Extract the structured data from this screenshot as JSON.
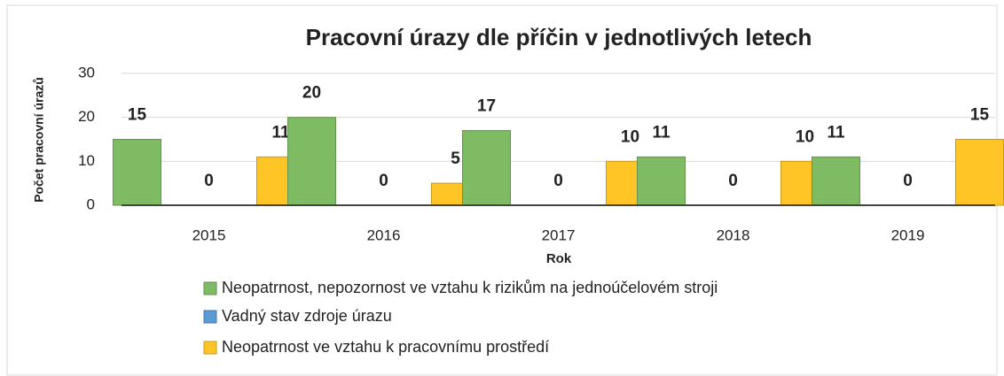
{
  "chart_data": {
    "type": "bar",
    "title": "Pracovní úrazy dle příčin v jednotlivých letech",
    "x_label": "Rok",
    "y_label": "Počet pracovní úrazů",
    "categories": [
      "2015",
      "2016",
      "2017",
      "2018",
      "2019"
    ],
    "series": [
      {
        "name": "Neopatrnost, nepozornost ve vztahu k rizikům na jednoúčelovém stroji",
        "color": "#7fbb63",
        "values": [
          15,
          20,
          17,
          11,
          11
        ]
      },
      {
        "name": "Vadný stav zdroje úrazu",
        "color": "#5b9bd5",
        "values": [
          0,
          0,
          0,
          0,
          0
        ]
      },
      {
        "name": "Neopatrnost ve vztahu k pracovnímu prostředí",
        "color": "#ffc425",
        "values": [
          11,
          5,
          10,
          10,
          15
        ]
      }
    ],
    "ylim": [
      0,
      30
    ],
    "yticks": [
      0,
      10,
      20,
      30
    ],
    "grid": true,
    "legend": "bottom"
  }
}
